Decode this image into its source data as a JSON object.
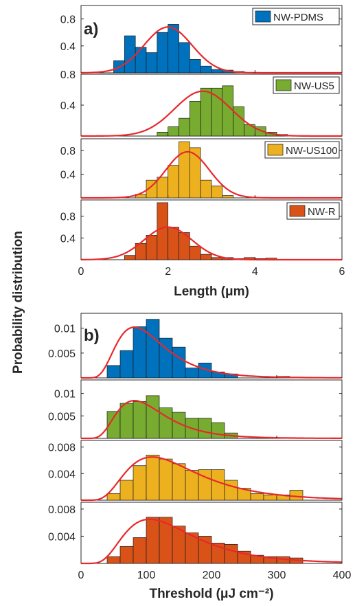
{
  "figure": {
    "ylabel": "Probability distribution"
  },
  "chart_data": [
    {
      "type": "bar",
      "panel_label": "a)",
      "title": "",
      "xlabel": "Length (μm)",
      "xlim": [
        0,
        6
      ],
      "xticks": [
        0,
        2,
        4,
        6
      ],
      "bin_width": 0.25,
      "fit": "normal",
      "subplots": [
        {
          "name": "NW-PDMS",
          "color": "#0072bd",
          "ylim": [
            0,
            1.0
          ],
          "yticks": [
            0.4,
            0.8
          ],
          "bin_starts": [
            0.75,
            1.0,
            1.25,
            1.5,
            1.75,
            2.0,
            2.25,
            2.5,
            2.75,
            3.0,
            3.25,
            3.5
          ],
          "values": [
            0.18,
            0.55,
            0.38,
            0.3,
            0.6,
            0.72,
            0.45,
            0.2,
            0.1,
            0.05,
            0.04,
            0.02
          ],
          "fit_mean": 2.0,
          "fit_std": 0.55,
          "fit_peak": 0.68
        },
        {
          "name": "NW-US5",
          "color": "#77ac30",
          "ylim": [
            0,
            0.8
          ],
          "yticks": [
            0.4,
            0.8
          ],
          "bin_starts": [
            1.75,
            2.0,
            2.25,
            2.5,
            2.75,
            3.0,
            3.25,
            3.5,
            3.75,
            4.0,
            4.25,
            4.5
          ],
          "values": [
            0.05,
            0.12,
            0.23,
            0.45,
            0.62,
            0.62,
            0.65,
            0.38,
            0.15,
            0.12,
            0.05,
            0.02
          ],
          "fit_mean": 2.8,
          "fit_std": 0.65,
          "fit_peak": 0.58
        },
        {
          "name": "NW-US100",
          "color": "#edb120",
          "ylim": [
            0,
            1.0
          ],
          "yticks": [
            0.4,
            0.8
          ],
          "bin_starts": [
            1.25,
            1.5,
            1.75,
            2.0,
            2.25,
            2.5,
            2.75,
            3.0,
            3.25
          ],
          "values": [
            0.06,
            0.3,
            0.35,
            0.55,
            0.95,
            0.85,
            0.3,
            0.2,
            0.04
          ],
          "fit_mean": 2.45,
          "fit_std": 0.5,
          "fit_peak": 0.78
        },
        {
          "name": "NW-R",
          "color": "#d95319",
          "ylim": [
            0,
            1.1
          ],
          "yticks": [
            0.4,
            0.8
          ],
          "bin_starts": [
            1.0,
            1.25,
            1.5,
            1.75,
            2.0,
            2.25,
            2.5,
            2.75,
            3.0,
            3.25,
            3.5,
            3.75,
            4.0,
            4.25
          ],
          "values": [
            0.08,
            0.3,
            0.45,
            1.05,
            0.6,
            0.5,
            0.25,
            0.1,
            0.04,
            0.04,
            0.02,
            0.04,
            0.02,
            0.03
          ],
          "fit_mean": 2.0,
          "fit_std": 0.55,
          "fit_peak": 0.6
        }
      ]
    },
    {
      "type": "bar",
      "panel_label": "b)",
      "title": "",
      "xlabel": "Threshold (μJ cm⁻²)",
      "xlim": [
        0,
        400
      ],
      "xticks": [
        0,
        100,
        200,
        300,
        400
      ],
      "bin_width": 20,
      "fit": "log-normal",
      "subplots": [
        {
          "name": "NW-PDMS",
          "color": "#0072bd",
          "ylim": [
            0,
            0.013
          ],
          "yticks": [
            0.005,
            0.01
          ],
          "ytick_labels": [
            "0.005",
            "0.01"
          ],
          "bin_starts": [
            40,
            60,
            80,
            100,
            120,
            140,
            160,
            180,
            200,
            220,
            300
          ],
          "values": [
            0.0025,
            0.0055,
            0.0103,
            0.0118,
            0.008,
            0.0062,
            0.002,
            0.003,
            0.0012,
            0.0008,
            0.0003
          ],
          "fit_median": 100,
          "fit_sigma": 0.45,
          "fit_peak": 0.0102
        },
        {
          "name": "NW-US5",
          "color": "#77ac30",
          "ylim": [
            0,
            0.013
          ],
          "yticks": [
            0.005,
            0.01
          ],
          "ytick_labels": [
            "0.005",
            "0.01"
          ],
          "bin_starts": [
            40,
            60,
            80,
            100,
            120,
            140,
            160,
            180,
            200,
            220
          ],
          "values": [
            0.006,
            0.0078,
            0.0082,
            0.0095,
            0.0068,
            0.0058,
            0.0045,
            0.0045,
            0.0035,
            0.0012
          ],
          "fit_median": 100,
          "fit_sigma": 0.45,
          "fit_peak": 0.0084
        },
        {
          "name": "NW-US100",
          "color": "#edb120",
          "ylim": [
            0,
            0.009
          ],
          "yticks": [
            0.004,
            0.008
          ],
          "ytick_labels": [
            "0.004",
            "0.008"
          ],
          "bin_starts": [
            40,
            60,
            80,
            100,
            120,
            140,
            160,
            180,
            200,
            220,
            240,
            260,
            280,
            300,
            320
          ],
          "values": [
            0.001,
            0.003,
            0.0052,
            0.0068,
            0.0062,
            0.0055,
            0.0045,
            0.0046,
            0.0046,
            0.003,
            0.0018,
            0.001,
            0.0008,
            0.0008,
            0.0015
          ],
          "fit_median": 140,
          "fit_sigma": 0.5,
          "fit_peak": 0.0065
        },
        {
          "name": "NW-R",
          "color": "#d95319",
          "ylim": [
            0,
            0.009
          ],
          "yticks": [
            0.004,
            0.008
          ],
          "ytick_labels": [
            "0.004",
            "0.008"
          ],
          "bin_starts": [
            40,
            60,
            80,
            100,
            120,
            140,
            160,
            180,
            200,
            220,
            240,
            260,
            280,
            300,
            320
          ],
          "values": [
            0.001,
            0.0025,
            0.0038,
            0.0068,
            0.0068,
            0.0055,
            0.0045,
            0.004,
            0.003,
            0.0028,
            0.0018,
            0.0012,
            0.001,
            0.001,
            0.0008
          ],
          "fit_median": 135,
          "fit_sigma": 0.5,
          "fit_peak": 0.0065
        }
      ]
    }
  ]
}
